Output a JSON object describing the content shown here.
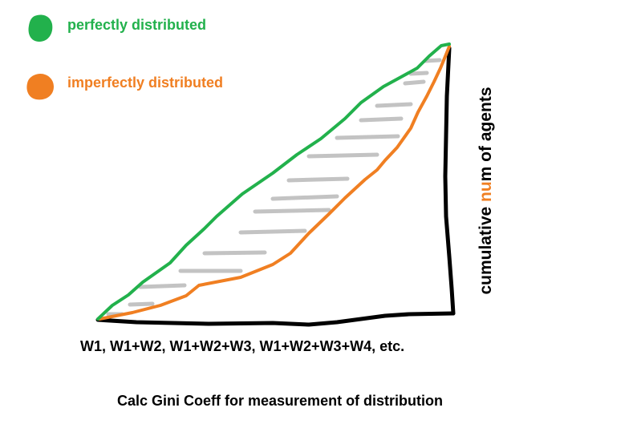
{
  "legend": {
    "green_label": "perfectly distributed",
    "orange_label": "imperfectly distributed"
  },
  "axes": {
    "x_caption": "W1, W1+W2, W1+W2+W3, W1+W2+W3+W4, etc.",
    "y_caption_part1": "cumulative ",
    "y_caption_part2": "nu",
    "y_caption_part3": "m of agents"
  },
  "footer": {
    "caption": "Calc Gini Coeff for measurement of distribution"
  },
  "colors": {
    "green": "#22b14c",
    "orange": "#f07f22",
    "gray": "#c3c3c3",
    "black": "#000000"
  }
}
